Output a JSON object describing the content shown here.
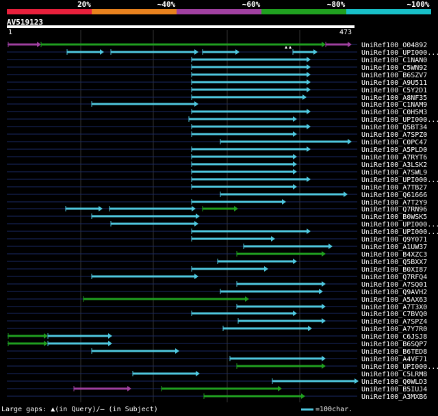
{
  "legend": {
    "labels": [
      "20%",
      "~40%",
      "~60%",
      "~80%",
      "~100%"
    ],
    "colors": [
      "#e8203c",
      "#e8821e",
      "#a040a0",
      "#20a020",
      "#18c0c8"
    ]
  },
  "query": {
    "name": "AV519123",
    "start": "1",
    "end": "473"
  },
  "hits": [
    "UniRef100_O04892",
    "UniRef100_UPI000...",
    "UniRef100_C1NAN0",
    "UniRef100_C5WN92",
    "UniRef100_B6SZV7",
    "UniRef100_A9U511",
    "UniRef100_C5Y2D1",
    "UniRef100_A8NF35",
    "UniRef100_C1NAM9",
    "UniRef100_C0H5M3",
    "UniRef100_UPI000...",
    "UniRef100_Q5BT34",
    "UniRef100_A7SPZ0",
    "UniRef100_C0PC47",
    "UniRef100_A5PLD0",
    "UniRef100_A7RYT6",
    "UniRef100_A3LSK2",
    "UniRef100_A7SWL9",
    "UniRef100_UPI000...",
    "UniRef100_A7TB27",
    "UniRef100_Q61666",
    "UniRef100_A7T2Y9",
    "UniRef100_Q7RN96",
    "UniRef100_B0WSK5",
    "UniRef100_UPI000...",
    "UniRef100_UPI000...",
    "UniRef100_Q9Y071",
    "UniRef100_A1UW37",
    "UniRef100_B4XZC3",
    "UniRef100_Q5BXX7",
    "UniRef100_B0XI87",
    "UniRef100_Q7RFQ4",
    "UniRef100_A7SQ01",
    "UniRef100_Q9AVH2",
    "UniRef100_A5AX63",
    "UniRef100_A7T3X0",
    "UniRef100_C7BVQ0",
    "UniRef100_A7SPZ4",
    "UniRef100_A7Y7R0",
    "UniRef100_C6JSJ8",
    "UniRef100_B6SQP7",
    "UniRef100_B6TED8",
    "UniRef100_A4VF71",
    "UniRef100_UPI000...",
    "UniRef100_C5LRM8",
    "UniRef100_Q0WLD3",
    "UniRef100_B5IUJ4",
    "UniRef100_A3MXB6"
  ],
  "footer": {
    "gaps_text": "Large gaps: ▲(in Query)/– (in Subject)",
    "scale_text": "=100char."
  }
}
